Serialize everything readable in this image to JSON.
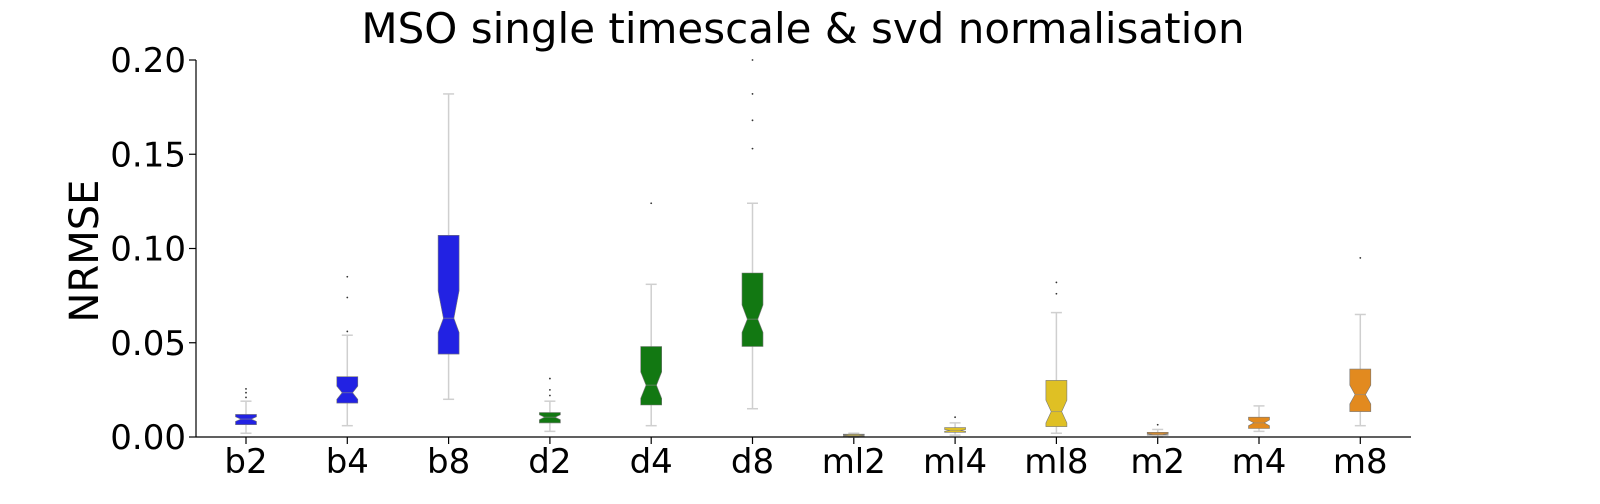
{
  "chart_data": {
    "type": "boxplot",
    "title": "MSO single timescale & svd normalisation",
    "xlabel": "",
    "ylabel": "NRMSE",
    "ylim": [
      0.0,
      0.2
    ],
    "yticks": [
      "0.00",
      "0.05",
      "0.10",
      "0.15",
      "0.20"
    ],
    "ytick_values": [
      0.0,
      0.05,
      0.1,
      0.15,
      0.2
    ],
    "notched": true,
    "grid": false,
    "categories": [
      "b2",
      "b4",
      "b8",
      "d2",
      "d4",
      "d8",
      "ml2",
      "ml4",
      "ml8",
      "m2",
      "m4",
      "m8"
    ],
    "boxes": [
      {
        "label": "b2",
        "color": "#2222e3",
        "whislo": 0.002,
        "q1": 0.0065,
        "med": 0.0095,
        "q3": 0.012,
        "whishi": 0.019,
        "notch_lo": 0.0083,
        "notch_hi": 0.0107,
        "fliers": [
          0.021,
          0.0235,
          0.0255
        ]
      },
      {
        "label": "b4",
        "color": "#2222e3",
        "whislo": 0.006,
        "q1": 0.018,
        "med": 0.0235,
        "q3": 0.032,
        "whishi": 0.054,
        "notch_lo": 0.02,
        "notch_hi": 0.027,
        "fliers": [
          0.056,
          0.074,
          0.085
        ]
      },
      {
        "label": "b8",
        "color": "#2222e3",
        "whislo": 0.02,
        "q1": 0.044,
        "med": 0.063,
        "q3": 0.107,
        "whishi": 0.182,
        "notch_lo": 0.0555,
        "notch_hi": 0.0775,
        "fliers": []
      },
      {
        "label": "d2",
        "color": "#127812",
        "whislo": 0.003,
        "q1": 0.0075,
        "med": 0.0105,
        "q3": 0.013,
        "whishi": 0.019,
        "notch_lo": 0.0092,
        "notch_hi": 0.0118,
        "fliers": [
          0.022,
          0.025,
          0.031
        ]
      },
      {
        "label": "d4",
        "color": "#127812",
        "whislo": 0.006,
        "q1": 0.017,
        "med": 0.0275,
        "q3": 0.048,
        "whishi": 0.081,
        "notch_lo": 0.0205,
        "notch_hi": 0.0345,
        "fliers": [
          0.124
        ]
      },
      {
        "label": "d8",
        "color": "#127812",
        "whislo": 0.015,
        "q1": 0.048,
        "med": 0.0625,
        "q3": 0.087,
        "whishi": 0.124,
        "notch_lo": 0.0555,
        "notch_hi": 0.07,
        "fliers": [
          0.153,
          0.168,
          0.182,
          0.2
        ]
      },
      {
        "label": "ml2",
        "color": "#dfc024",
        "whislo": 0.0,
        "q1": 0.0005,
        "med": 0.001,
        "q3": 0.0015,
        "whishi": 0.002,
        "notch_lo": 0.0008,
        "notch_hi": 0.0012,
        "fliers": []
      },
      {
        "label": "ml4",
        "color": "#dfc024",
        "whislo": 0.001,
        "q1": 0.0025,
        "med": 0.0035,
        "q3": 0.005,
        "whishi": 0.0075,
        "notch_lo": 0.003,
        "notch_hi": 0.004,
        "fliers": [
          0.0105
        ]
      },
      {
        "label": "ml8",
        "color": "#dfc024",
        "whislo": 0.002,
        "q1": 0.0055,
        "med": 0.0135,
        "q3": 0.03,
        "whishi": 0.066,
        "notch_lo": 0.0075,
        "notch_hi": 0.0195,
        "fliers": [
          0.076,
          0.082
        ]
      },
      {
        "label": "m2",
        "color": "#e28a1f",
        "whislo": 0.0,
        "q1": 0.001,
        "med": 0.0015,
        "q3": 0.0025,
        "whishi": 0.004,
        "notch_lo": 0.0012,
        "notch_hi": 0.0018,
        "fliers": [
          0.0065
        ]
      },
      {
        "label": "m4",
        "color": "#e28a1f",
        "whislo": 0.003,
        "q1": 0.0045,
        "med": 0.0075,
        "q3": 0.0105,
        "whishi": 0.0165,
        "notch_lo": 0.006,
        "notch_hi": 0.009,
        "fliers": []
      },
      {
        "label": "m8",
        "color": "#e28a1f",
        "whislo": 0.006,
        "q1": 0.0135,
        "med": 0.0225,
        "q3": 0.036,
        "whishi": 0.065,
        "notch_lo": 0.0175,
        "notch_hi": 0.0275,
        "fliers": [
          0.095
        ]
      }
    ]
  }
}
